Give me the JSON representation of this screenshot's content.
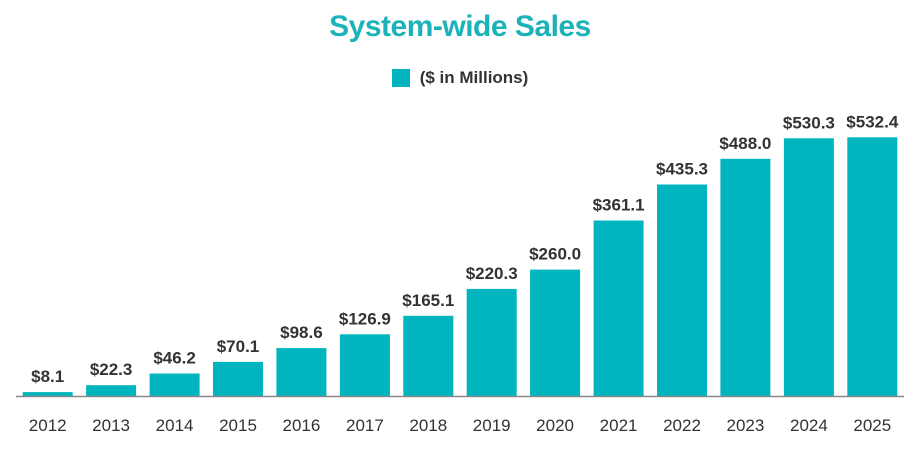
{
  "colors": {
    "bar": "#00b5bd",
    "title": "#1bb2b9",
    "axis": "#888888",
    "label": "#333333"
  },
  "chart_data": {
    "type": "bar",
    "title": "System-wide Sales",
    "legend": {
      "position": "top-center",
      "entries": [
        "($ in Millions)"
      ]
    },
    "categories": [
      "2012",
      "2013",
      "2014",
      "2015",
      "2016",
      "2017",
      "2018",
      "2019",
      "2020",
      "2021",
      "2022",
      "2023",
      "2024",
      "2025"
    ],
    "series": [
      {
        "name": "($ in Millions)",
        "values": [
          8.1,
          22.3,
          46.2,
          70.1,
          98.6,
          126.9,
          165.1,
          220.3,
          260.0,
          361.1,
          435.3,
          488.0,
          530.3,
          532.4
        ]
      }
    ],
    "data_labels": [
      "$8.1",
      "$22.3",
      "$46.2",
      "$70.1",
      "$98.6",
      "$126.9",
      "$165.1",
      "$220.3",
      "$260.0",
      "$361.1",
      "$435.3",
      "$488.0",
      "$530.3",
      "$532.4"
    ],
    "xlabel": "",
    "ylabel": "",
    "ylim": [
      0,
      535
    ],
    "grid": false
  }
}
